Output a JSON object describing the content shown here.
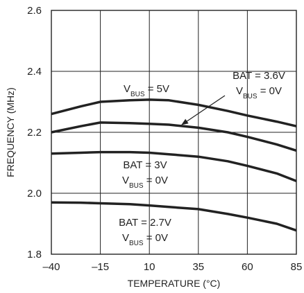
{
  "chart_data": {
    "type": "line",
    "xlabel": "TEMPERATURE (°C)",
    "ylabel": "FREQUENCY (MHz)",
    "xlim": [
      -40,
      85
    ],
    "ylim": [
      1.8,
      2.6
    ],
    "xticks": [
      -40,
      -15,
      10,
      35,
      60,
      85
    ],
    "xtick_labels": [
      "–40",
      "–15",
      "10",
      "35",
      "60",
      "85"
    ],
    "yticks": [
      1.8,
      2.0,
      2.2,
      2.4,
      2.6
    ],
    "ytick_labels": [
      "1.8",
      "2.0",
      "2.2",
      "2.4",
      "2.6"
    ],
    "grid": true,
    "series": [
      {
        "label_lines": [
          {
            "base": "V",
            "sub": "BUS",
            "rest": " = 5V"
          }
        ],
        "x": [
          -40,
          -25,
          -15,
          0,
          10,
          20,
          35,
          50,
          60,
          75,
          85
        ],
        "y": [
          2.26,
          2.285,
          2.3,
          2.305,
          2.307,
          2.305,
          2.29,
          2.27,
          2.255,
          2.235,
          2.22
        ]
      },
      {
        "label_lines": [
          {
            "base": "BAT = 3.6V",
            "sub": "",
            "rest": ""
          },
          {
            "base": "V",
            "sub": "BUS",
            "rest": " = 0V"
          }
        ],
        "x": [
          -40,
          -25,
          -15,
          0,
          10,
          20,
          35,
          50,
          60,
          75,
          85
        ],
        "y": [
          2.2,
          2.22,
          2.232,
          2.23,
          2.228,
          2.225,
          2.215,
          2.2,
          2.185,
          2.16,
          2.14
        ]
      },
      {
        "label_lines": [
          {
            "base": "BAT = 3V",
            "sub": "",
            "rest": ""
          },
          {
            "base": "V",
            "sub": "BUS",
            "rest": " = 0V"
          }
        ],
        "x": [
          -40,
          -25,
          -15,
          0,
          10,
          20,
          35,
          50,
          60,
          75,
          85
        ],
        "y": [
          2.13,
          2.133,
          2.135,
          2.135,
          2.133,
          2.128,
          2.12,
          2.105,
          2.09,
          2.065,
          2.04
        ]
      },
      {
        "label_lines": [
          {
            "base": "BAT = 2.7V",
            "sub": "",
            "rest": ""
          },
          {
            "base": "V",
            "sub": "BUS",
            "rest": " = 0V"
          }
        ],
        "x": [
          -40,
          -25,
          -15,
          0,
          10,
          20,
          35,
          50,
          60,
          75,
          85
        ],
        "y": [
          1.97,
          1.969,
          1.967,
          1.964,
          1.96,
          1.955,
          1.948,
          1.932,
          1.92,
          1.9,
          1.878
        ]
      }
    ]
  }
}
